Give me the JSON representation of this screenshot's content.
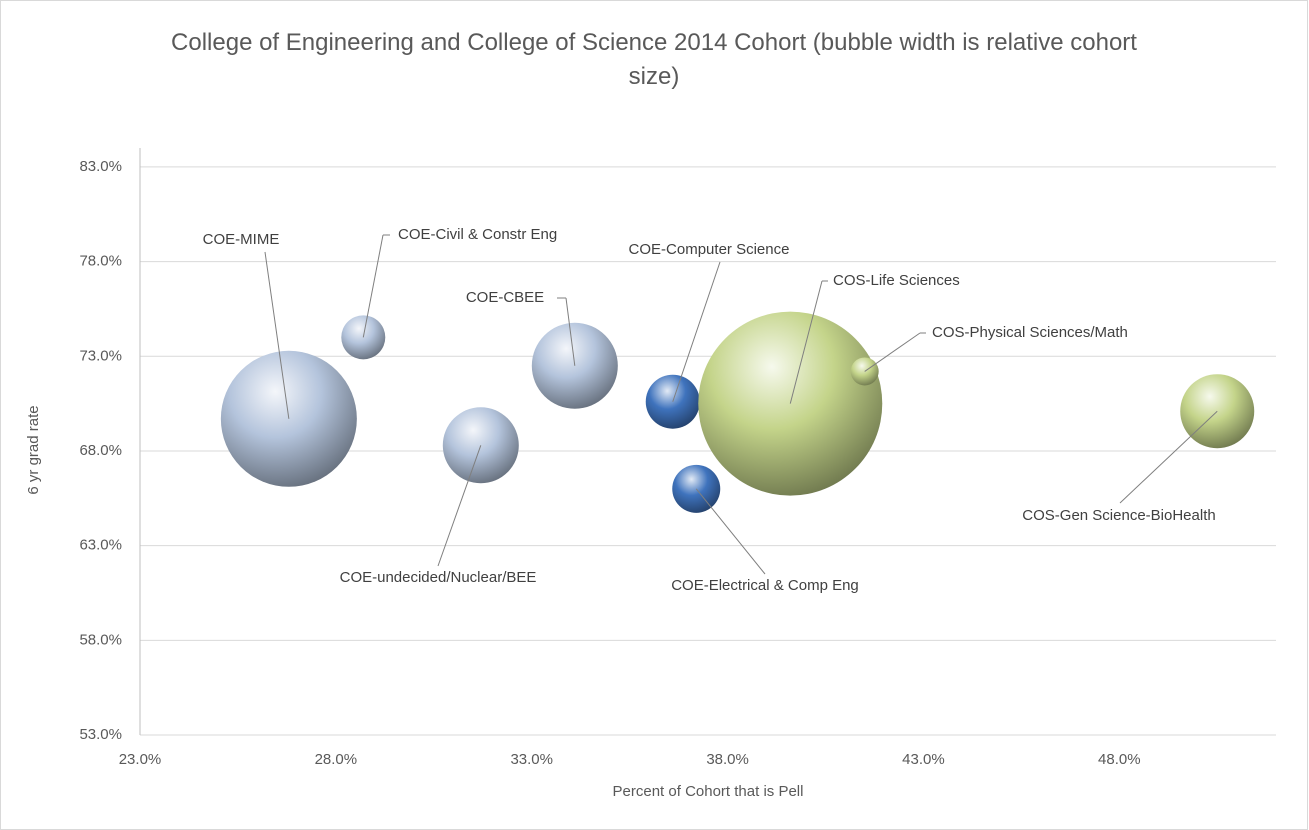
{
  "chart_data": {
    "type": "bubble",
    "title": "College of Engineering and College of Science 2014 Cohort (bubble width is relative cohort size)",
    "x_label": "Percent of Cohort that is Pell",
    "y_label": "6 yr grad rate",
    "xlim": [
      23,
      52
    ],
    "ylim": [
      53,
      84
    ],
    "xticks": [
      {
        "value": 23,
        "label": "23.0%"
      },
      {
        "value": 28,
        "label": "28.0%"
      },
      {
        "value": 33,
        "label": "33.0%"
      },
      {
        "value": 38,
        "label": "38.0%"
      },
      {
        "value": 43,
        "label": "43.0%"
      },
      {
        "value": 48,
        "label": "48.0%"
      }
    ],
    "yticks": [
      {
        "value": 53,
        "label": "53.0%"
      },
      {
        "value": 58,
        "label": "58.0%"
      },
      {
        "value": 63,
        "label": "63.0%"
      },
      {
        "value": 68,
        "label": "68.0%"
      },
      {
        "value": 73,
        "label": "73.0%"
      },
      {
        "value": 78,
        "label": "78.0%"
      },
      {
        "value": 83,
        "label": "83.0%"
      }
    ],
    "grid": true,
    "points": [
      {
        "label": "COE-MIME",
        "x": 26.8,
        "y": 69.7,
        "size": 136,
        "color": "#b4c4dc"
      },
      {
        "label": "COE-Civil & Constr Eng",
        "x": 28.7,
        "y": 74.0,
        "size": 44,
        "color": "#b4c4dc"
      },
      {
        "label": "COE-undecided/Nuclear/BEE",
        "x": 31.7,
        "y": 68.3,
        "size": 76,
        "color": "#b4c4dc"
      },
      {
        "label": "COE-CBEE",
        "x": 34.1,
        "y": 72.5,
        "size": 86,
        "color": "#b4c4dc"
      },
      {
        "label": "COE-Computer Science",
        "x": 36.6,
        "y": 70.6,
        "size": 54,
        "color": "#3f73bd"
      },
      {
        "label": "COE-Electrical & Comp Eng",
        "x": 37.2,
        "y": 66.0,
        "size": 48,
        "color": "#3f73bd"
      },
      {
        "label": "COS-Life Sciences",
        "x": 39.6,
        "y": 70.5,
        "size": 184,
        "color": "#c4d48a"
      },
      {
        "label": "COS-Physical Sciences/Math",
        "x": 41.5,
        "y": 72.2,
        "size": 28,
        "color": "#c4d48a"
      },
      {
        "label": "COS-Gen Science-BioHealth",
        "x": 50.5,
        "y": 70.1,
        "size": 74,
        "color": "#c4d48a"
      }
    ]
  }
}
